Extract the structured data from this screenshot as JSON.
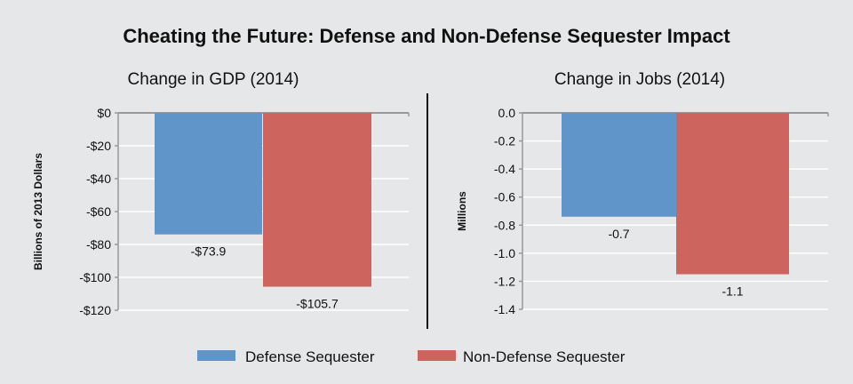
{
  "title": "Cheating the Future: Defense and Non-Defense Sequester Impact",
  "colors": {
    "defense": "#5f95c9",
    "non_defense": "#cd645e",
    "background": "#e6e7e8"
  },
  "legend": [
    {
      "name": "Defense Sequester",
      "color": "#5f95c9"
    },
    {
      "name": "Non-Defense Sequester",
      "color": "#cd645e"
    }
  ],
  "chart_data": [
    {
      "type": "bar",
      "title": "Change in GDP (2014)",
      "ylabel": "Billions of 2013 Dollars",
      "ylim": [
        -120,
        0
      ],
      "yticks": [
        0,
        -20,
        -40,
        -60,
        -80,
        -100,
        -120
      ],
      "ytick_labels": [
        "$0",
        "-$20",
        "-$40",
        "-$60",
        "-$80",
        "-$100",
        "-$120"
      ],
      "grid": true,
      "series": [
        {
          "name": "Defense Sequester",
          "value": -73.9,
          "label": "-$73.9"
        },
        {
          "name": "Non-Defense Sequester",
          "value": -105.7,
          "label": "-$105.7"
        }
      ]
    },
    {
      "type": "bar",
      "title": "Change in Jobs (2014)",
      "ylabel": "Millions",
      "ylim": [
        -1.4,
        0
      ],
      "yticks": [
        0,
        -0.2,
        -0.4,
        -0.6,
        -0.8,
        -1.0,
        -1.2,
        -1.4
      ],
      "ytick_labels": [
        "0.0",
        "-0.2",
        "-0.4",
        "-0.6",
        "-0.8",
        "-1.0",
        "-1.2",
        "-1.4"
      ],
      "grid": true,
      "series": [
        {
          "name": "Defense Sequester",
          "value": -0.74,
          "label": "-0.7"
        },
        {
          "name": "Non-Defense Sequester",
          "value": -1.15,
          "label": "-1.1"
        }
      ]
    }
  ]
}
